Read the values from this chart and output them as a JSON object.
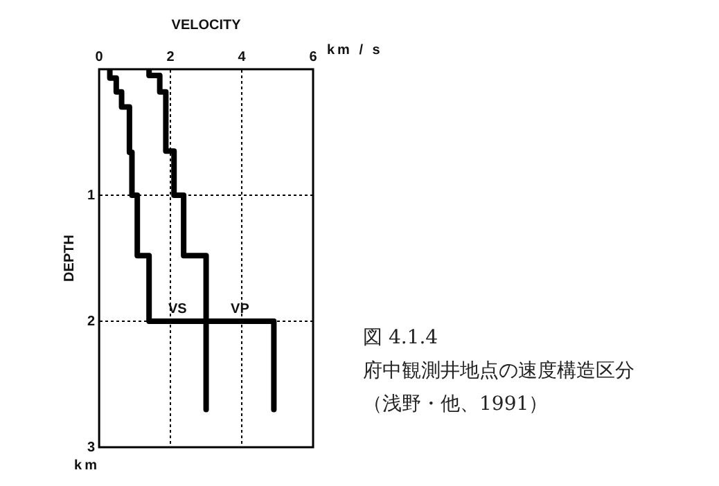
{
  "chart_data": {
    "type": "line",
    "xlabel": "VELOCITY",
    "ylabel": "DEPTH",
    "xlim": [
      0,
      6
    ],
    "xticks": [
      0,
      2,
      4,
      6
    ],
    "ylim": [
      3,
      0
    ],
    "yticks": [
      1,
      2,
      3
    ],
    "grid": true,
    "legend": false,
    "marker": "none",
    "line_style": "solid",
    "series": [
      {
        "name": "VS",
        "color": "#000000",
        "x": [
          0.3,
          0.3,
          0.48,
          0.48,
          0.63,
          0.63,
          0.85,
          0.85,
          0.92,
          0.92,
          1.07,
          1.07,
          1.4,
          1.4,
          3.0,
          3.0
        ],
        "values": [
          0,
          0.07,
          0.07,
          0.18,
          0.18,
          0.3,
          0.3,
          0.66,
          0.66,
          1.0,
          1.0,
          1.48,
          1.48,
          2.0,
          2.0,
          2.7
        ]
      },
      {
        "name": "VP",
        "color": "#000000",
        "x": [
          1.4,
          1.4,
          1.7,
          1.7,
          1.87,
          1.87,
          2.1,
          2.1,
          2.37,
          2.37,
          3.0,
          3.0,
          4.9,
          4.9
        ],
        "values": [
          0,
          0.05,
          0.05,
          0.18,
          0.18,
          0.65,
          0.65,
          1.0,
          1.0,
          1.48,
          1.48,
          2.0,
          2.0,
          2.7
        ]
      }
    ],
    "annotations": [
      "km / s",
      "km",
      "図 4.1.4",
      "府中観測井地点の速度構造区分",
      "（浅野・他、1991）"
    ]
  }
}
